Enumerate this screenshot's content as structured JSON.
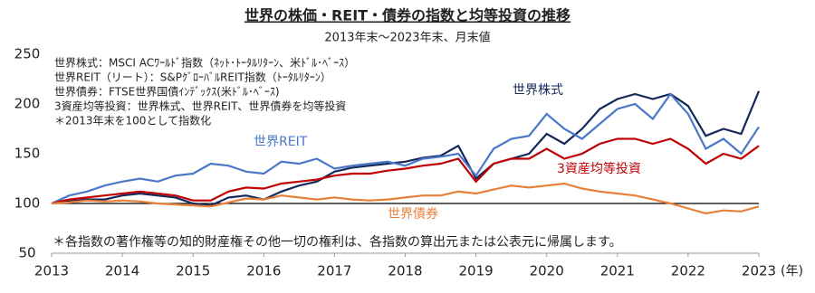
{
  "chart_data": {
    "type": "line",
    "title": "世界の株価・REIT・債券の指数と均等投資の推移",
    "subtitle": "2013年末〜2023年末、月末値",
    "notes": [
      "世界株式：MSCI ACﾜｰﾙﾄﾞ指数（ﾈｯﾄ･ﾄｰﾀﾙﾘﾀｰﾝ、米ﾄﾞﾙ･ﾍﾞｰｽ）",
      "世界REIT（リート）：S&PｸﾞﾛｰﾊﾞﾙREIT指数（ﾄｰﾀﾙﾘﾀｰﾝ）",
      "世界債券：FTSE世界国債ｲﾝﾃﾞｯｸｽ(米ﾄﾞﾙ･ﾍﾞｰｽ)",
      "3資産均等投資：世界株式、世界REIT、世界債券を均等投資",
      "＊2013年末を100として指数化"
    ],
    "footnote": "＊各指数の著作権等の知的財産権その他一切の権利は、各指数の算出元または公表元に帰属します。",
    "x_unit": "(年)",
    "x": [
      2013,
      2013.25,
      2013.5,
      2013.75,
      2014,
      2014.25,
      2014.5,
      2014.75,
      2015,
      2015.25,
      2015.5,
      2015.75,
      2016,
      2016.25,
      2016.5,
      2016.75,
      2017,
      2017.25,
      2017.5,
      2017.75,
      2018,
      2018.25,
      2018.5,
      2018.75,
      2019,
      2019.25,
      2019.5,
      2019.75,
      2020,
      2020.25,
      2020.5,
      2020.75,
      2021,
      2021.25,
      2021.5,
      2021.75,
      2022,
      2022.25,
      2022.5,
      2022.75,
      2023
    ],
    "xlim": [
      2013,
      2023
    ],
    "xticks": [
      2013,
      2014,
      2015,
      2016,
      2017,
      2018,
      2019,
      2020,
      2021,
      2022,
      2023
    ],
    "ylim": [
      50,
      250
    ],
    "yticks": [
      50,
      100,
      150,
      200,
      250
    ],
    "reference_line": 100,
    "series": [
      {
        "name": "世界株式",
        "color": "#14285a",
        "values": [
          100,
          102,
          104,
          104,
          108,
          110,
          108,
          106,
          100,
          98,
          106,
          108,
          104,
          112,
          118,
          122,
          132,
          136,
          138,
          140,
          142,
          146,
          148,
          158,
          125,
          140,
          145,
          150,
          170,
          160,
          175,
          195,
          205,
          210,
          205,
          210,
          198,
          168,
          175,
          170,
          213
        ]
      },
      {
        "name": "世界REIT",
        "color": "#4a78c8",
        "values": [
          100,
          108,
          112,
          118,
          122,
          125,
          122,
          128,
          130,
          140,
          138,
          132,
          130,
          142,
          140,
          145,
          135,
          138,
          140,
          142,
          138,
          145,
          147,
          150,
          128,
          155,
          165,
          168,
          190,
          175,
          165,
          180,
          195,
          200,
          185,
          210,
          190,
          155,
          165,
          150,
          177
        ]
      },
      {
        "name": "3資産均等投資",
        "color": "#c00000",
        "values": [
          100,
          104,
          106,
          108,
          110,
          112,
          110,
          108,
          103,
          103,
          112,
          116,
          115,
          120,
          122,
          124,
          128,
          130,
          130,
          133,
          135,
          138,
          140,
          145,
          122,
          140,
          145,
          145,
          155,
          145,
          150,
          160,
          165,
          165,
          160,
          165,
          155,
          140,
          150,
          145,
          158
        ]
      },
      {
        "name": "世界債券",
        "color": "#e8803a",
        "values": [
          100,
          101,
          103,
          102,
          103,
          102,
          100,
          99,
          98,
          97,
          101,
          105,
          104,
          108,
          106,
          104,
          106,
          104,
          103,
          104,
          106,
          108,
          108,
          112,
          110,
          114,
          118,
          116,
          118,
          120,
          115,
          112,
          110,
          108,
          104,
          100,
          95,
          90,
          93,
          92,
          97
        ]
      }
    ]
  }
}
